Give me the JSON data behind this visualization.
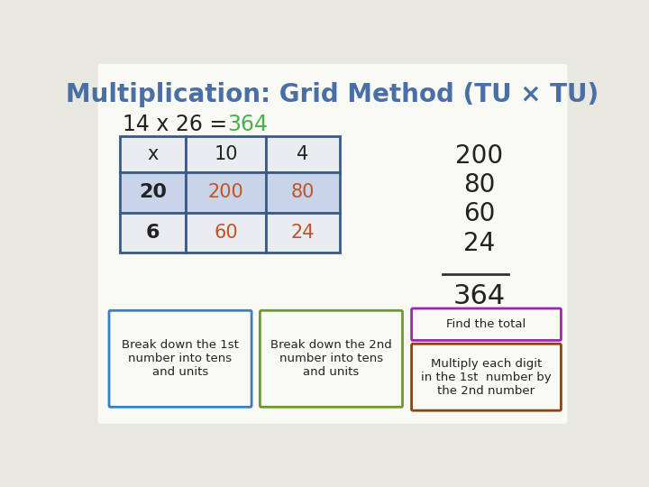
{
  "title": "Multiplication: Grid Method (TU × TU)",
  "title_color": "#4a6fa5",
  "equation_prefix": "14 x 26 = ",
  "equation_color": "#222222",
  "answer": "364",
  "answer_color": "#4caf50",
  "background_color": "#e8e8e0",
  "card_background": "#fafaf5",
  "grid": {
    "header_row": [
      "x",
      "10",
      "4"
    ],
    "row1_label": "20",
    "row2_label": "6",
    "row1_vals": [
      "200",
      "80"
    ],
    "row2_vals": [
      "60",
      "24"
    ],
    "header_bg": "#eaecf0",
    "row1_bg": "#c8d4e8",
    "row2_bg": "#eaecf0",
    "label_color": "#222222",
    "val_color": "#c0532b",
    "border_color": "#3a5a8a"
  },
  "addition": {
    "values": [
      "200",
      "80",
      "60",
      "24"
    ],
    "total": "364",
    "color": "#222222"
  },
  "boxes": [
    {
      "text": "Break down the 1st\nnumber into tens\nand units",
      "border_color": "#3a80c0",
      "bg": "#fafaf5"
    },
    {
      "text": "Break down the 2nd\nnumber into tens\nand units",
      "border_color": "#6a9a30",
      "bg": "#fafaf5"
    },
    {
      "text": "Find the total",
      "border_color": "#9c27b0",
      "bg": "#fafaf5"
    },
    {
      "text": "Multiply each digit\nin the 1st  number by\nthe 2nd number",
      "border_color": "#8B4513",
      "bg": "#fafaf5"
    }
  ]
}
